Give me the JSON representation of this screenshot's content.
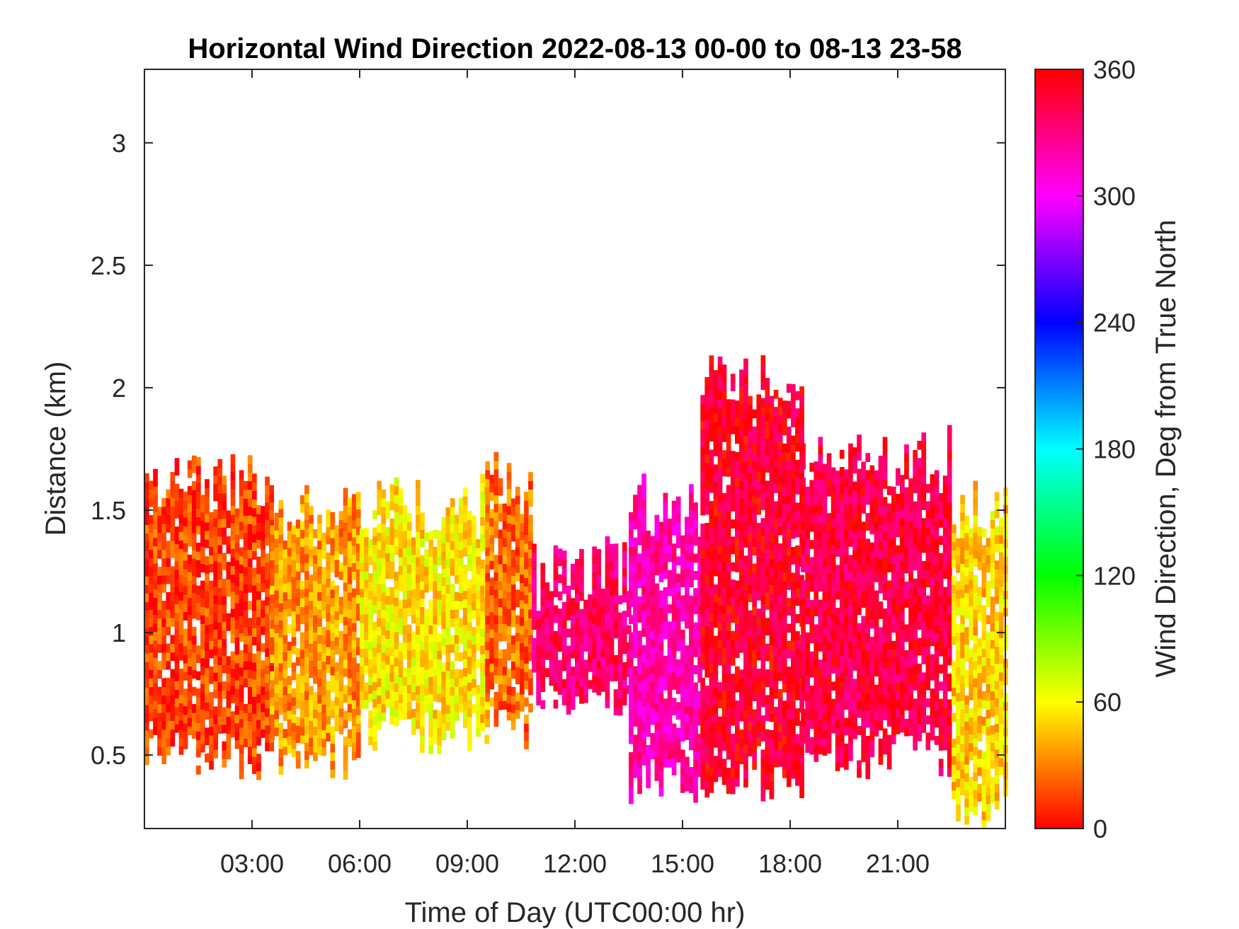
{
  "chart_data": {
    "type": "heatmap",
    "title": "Horizontal Wind Direction 2022-08-13 00-00 to 08-13 23-58",
    "xlabel": "Time of Day (UTC00:00 hr)",
    "ylabel": "Distance (km)",
    "xlim": [
      0,
      24
    ],
    "ylim": [
      0.2,
      3.3
    ],
    "x_ticks": [
      3,
      6,
      9,
      12,
      15,
      18,
      21
    ],
    "x_tick_labels": [
      "03:00",
      "06:00",
      "09:00",
      "12:00",
      "15:00",
      "18:00",
      "21:00"
    ],
    "y_ticks": [
      0.5,
      1,
      1.5,
      2,
      2.5,
      3
    ],
    "y_tick_labels": [
      "0.5",
      "1",
      "1.5",
      "2",
      "2.5",
      "3"
    ],
    "colorbar": {
      "label": "Wind Direction, Deg from True North",
      "range": [
        0,
        360
      ],
      "ticks": [
        0,
        60,
        120,
        180,
        240,
        300,
        360
      ],
      "tick_labels": [
        "0",
        "60",
        "120",
        "180",
        "240",
        "300",
        "360"
      ],
      "colormap": [
        "#ff0000",
        "#ffff00",
        "#00ff00",
        "#00ffff",
        "#0000ff",
        "#ff00ff",
        "#ff0000"
      ]
    },
    "grid": false,
    "data_summary": [
      {
        "t_start": 0.0,
        "t_end": 3.5,
        "z_min": 0.5,
        "z_max": 1.6,
        "direction_deg": 15
      },
      {
        "t_start": 3.5,
        "t_end": 6.0,
        "z_min": 0.5,
        "z_max": 1.5,
        "direction_deg": 35
      },
      {
        "t_start": 6.0,
        "t_end": 9.5,
        "z_min": 0.6,
        "z_max": 1.5,
        "direction_deg": 55
      },
      {
        "t_start": 9.5,
        "t_end": 10.8,
        "z_min": 0.6,
        "z_max": 1.6,
        "direction_deg": 25
      },
      {
        "t_start": 10.8,
        "t_end": 13.5,
        "z_min": 0.75,
        "z_max": 1.25,
        "direction_deg": 335
      },
      {
        "t_start": 13.5,
        "t_end": 15.5,
        "z_min": 0.4,
        "z_max": 1.5,
        "direction_deg": 320
      },
      {
        "t_start": 15.5,
        "t_end": 18.3,
        "z_min": 0.4,
        "z_max": 2.0,
        "direction_deg": 350
      },
      {
        "t_start": 18.3,
        "t_end": 22.5,
        "z_min": 0.5,
        "z_max": 1.7,
        "direction_deg": 345
      },
      {
        "t_start": 22.5,
        "t_end": 24.0,
        "z_min": 0.3,
        "z_max": 1.5,
        "direction_deg": 50
      }
    ]
  }
}
